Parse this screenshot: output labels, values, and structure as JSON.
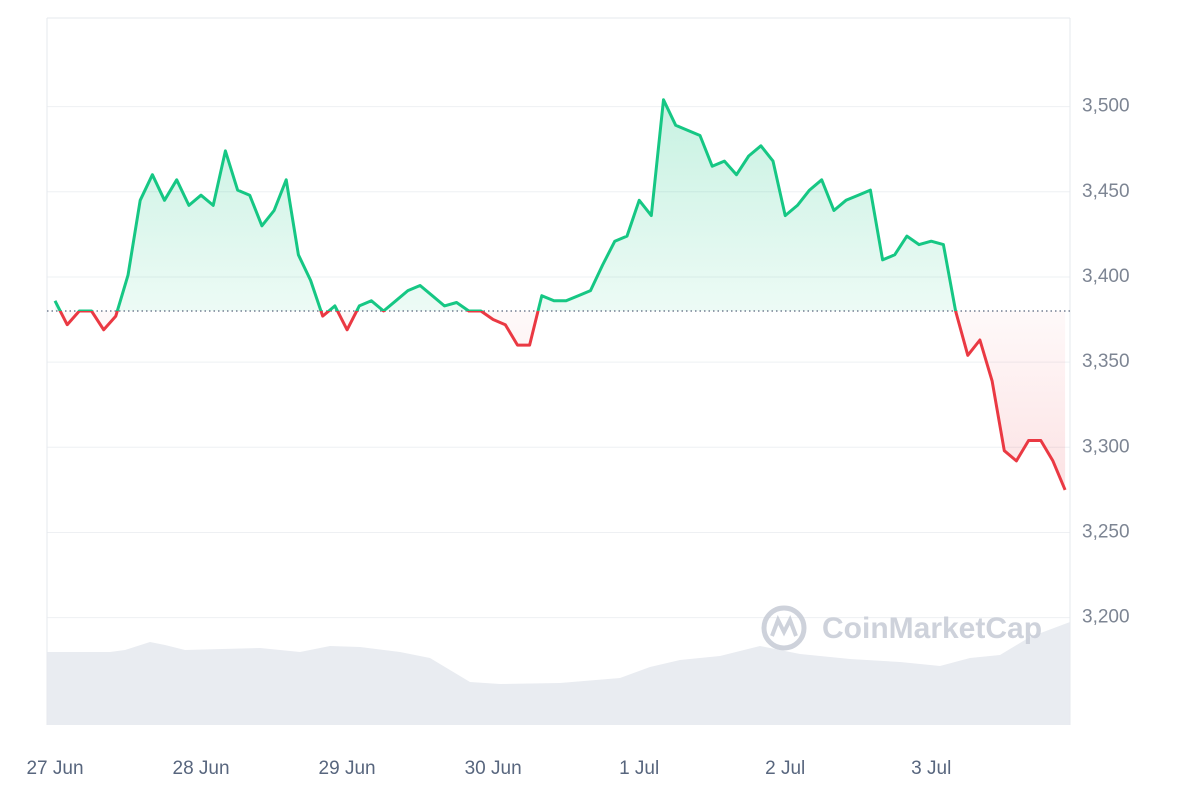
{
  "chart_data": {
    "type": "line",
    "categories": [
      "27 Jun",
      null,
      null,
      null,
      null,
      null,
      null,
      null,
      null,
      null,
      null,
      null,
      "28 Jun",
      null,
      null,
      null,
      null,
      null,
      null,
      null,
      null,
      null,
      null,
      null,
      "29 Jun",
      null,
      null,
      null,
      null,
      null,
      null,
      null,
      null,
      null,
      null,
      null,
      "30 Jun",
      null,
      null,
      null,
      null,
      null,
      null,
      null,
      null,
      null,
      null,
      null,
      "1 Jul",
      null,
      null,
      null,
      null,
      null,
      null,
      null,
      null,
      null,
      null,
      null,
      "2 Jul",
      null,
      null,
      null,
      null,
      null,
      null,
      null,
      null,
      null,
      null,
      null,
      "3 Jul",
      null,
      null,
      null,
      null,
      null,
      null,
      null,
      null,
      null,
      null,
      null
    ],
    "values": [
      3386,
      3372,
      3380,
      3380,
      3369,
      3377,
      3401,
      3445,
      3460,
      3445,
      3457,
      3442,
      3448,
      3442,
      3474,
      3451,
      3448,
      3430,
      3439,
      3457,
      3413,
      3398,
      3377,
      3383,
      3369,
      3383,
      3386,
      3380,
      3386,
      3392,
      3395,
      3389,
      3383,
      3385,
      3380,
      3380,
      3375,
      3372,
      3360,
      3360,
      3389,
      3386,
      3386,
      3389,
      3392,
      3407,
      3421,
      3424,
      3445,
      3436,
      3504,
      3489,
      3486,
      3483,
      3465,
      3468,
      3460,
      3471,
      3477,
      3468,
      3436,
      3442,
      3451,
      3457,
      3439,
      3445,
      3448,
      3451,
      3410,
      3413,
      3424,
      3419,
      3421,
      3419,
      3380,
      3354,
      3363,
      3339,
      3298,
      3292,
      3304,
      3304,
      3292,
      3275
    ],
    "baseline": 3380,
    "up_color": "#16c784",
    "down_color": "#ea3943",
    "ylim": [
      3137,
      3552
    ],
    "yticks": [
      {
        "value": 3200,
        "label": "3,200"
      },
      {
        "value": 3250,
        "label": "3,250"
      },
      {
        "value": 3300,
        "label": "3,300"
      },
      {
        "value": 3350,
        "label": "3,350"
      },
      {
        "value": 3400,
        "label": "3,400"
      },
      {
        "value": 3450,
        "label": "3,450"
      },
      {
        "value": 3500,
        "label": "3,500"
      }
    ],
    "grid": true,
    "watermark": "CoinMarketCap"
  }
}
